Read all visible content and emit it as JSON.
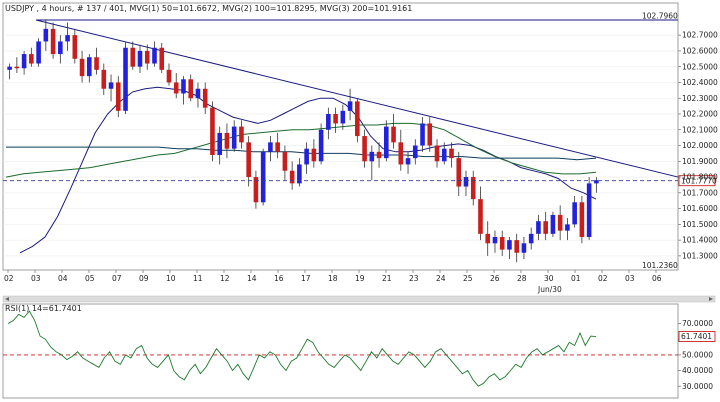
{
  "window": {
    "background": "#ffffff"
  },
  "main_chart": {
    "title": "USDJPY , 4 hours, # 137 / 401, MVG(1) 50=101.6672, MVG(2) 100=101.8295, MVG(3) 200=101.9161",
    "y_labels": [
      "102.7000",
      "102.6000",
      "102.5000",
      "102.4000",
      "102.3000",
      "102.2000",
      "102.1000",
      "102.0000",
      "101.9000",
      "101.8000",
      "101.7000",
      "101.6000",
      "101.5000",
      "101.4000",
      "101.3000"
    ],
    "high_label": "102.7960",
    "low_label": "101.2360",
    "price_label": "101.7770",
    "x_labels": [
      "02",
      "03",
      "04",
      "05",
      "07",
      "09",
      "10",
      "11",
      "12",
      "14",
      "16",
      "17",
      "18",
      "19",
      "21",
      "23",
      "24",
      "25",
      "26",
      "28",
      "30",
      "01",
      "02",
      "03",
      "06"
    ],
    "x_sublabel": "Jun/30"
  },
  "rsi_panel": {
    "title": "RSI(1) 14=61.7401",
    "y_labels": [
      "70.0000",
      "60.0000",
      "50.0000",
      "40.0000",
      "30.0000"
    ],
    "value_label": "61.7401"
  },
  "chart_data": [
    {
      "type": "candlestick",
      "title": "USDJPY , 4 hours, # 137 / 401, MVG(1) 50=101.6672, MVG(2) 100=101.8295, MVG(3) 200=101.9161",
      "ylim": [
        101.236,
        102.796
      ],
      "ticks": [
        102.7,
        102.6,
        102.5,
        102.4,
        102.3,
        102.2,
        102.1,
        102.0,
        101.9,
        101.8,
        101.7,
        101.6,
        101.5,
        101.4,
        101.3
      ],
      "markers": {
        "high": 102.796,
        "low": 101.236,
        "last": 101.777
      },
      "series": [
        {
          "name": "MVG(1) 50",
          "color": "#1a1a80"
        },
        {
          "name": "MVG(2) 100",
          "color": "#1c6b2c"
        },
        {
          "name": "MVG(3) 200",
          "color": "#0c3c5c"
        }
      ],
      "ma50": [
        101.32,
        101.36,
        101.42,
        101.55,
        101.72,
        101.9,
        102.08,
        102.2,
        102.28,
        102.34,
        102.36,
        102.37,
        102.36,
        102.35,
        102.32,
        102.26,
        102.22,
        102.18,
        102.16,
        102.14,
        102.16,
        102.2,
        102.24,
        102.28,
        102.3,
        102.3,
        102.26,
        102.18,
        102.06,
        101.98,
        101.96,
        101.96,
        101.97,
        101.99,
        102.0,
        102.01,
        102.0,
        101.97,
        101.93,
        101.9,
        101.86,
        101.84,
        101.82,
        101.79,
        101.73,
        101.7,
        101.66
      ],
      "ma100": [
        101.8,
        101.82,
        101.83,
        101.84,
        101.85,
        101.86,
        101.88,
        101.9,
        101.92,
        101.94,
        101.95,
        101.98,
        102.01,
        102.04,
        102.07,
        102.08,
        102.09,
        102.1,
        102.1,
        102.11,
        102.12,
        102.13,
        102.13,
        102.14,
        102.14,
        102.13,
        102.1,
        102.04,
        101.98,
        101.93,
        101.89,
        101.86,
        101.83,
        101.82,
        101.82,
        101.83
      ],
      "ma200": [
        101.99,
        101.99,
        101.99,
        101.99,
        101.99,
        101.99,
        101.99,
        101.99,
        101.99,
        101.98,
        101.98,
        101.97,
        101.97,
        101.96,
        101.96,
        101.96,
        101.95,
        101.95,
        101.95,
        101.94,
        101.94,
        101.94,
        101.93,
        101.93,
        101.93,
        101.92,
        101.92,
        101.92,
        101.92,
        101.92,
        101.91,
        101.92
      ],
      "trendline": [
        [
          102.796,
          0
        ],
        [
          101.8,
          1
        ]
      ],
      "candles": [
        [
          102.48,
          102.52,
          102.42,
          102.5
        ],
        [
          102.5,
          102.56,
          102.46,
          102.49
        ],
        [
          102.49,
          102.6,
          102.45,
          102.58
        ],
        [
          102.58,
          102.62,
          102.5,
          102.52
        ],
        [
          102.52,
          102.68,
          102.5,
          102.66
        ],
        [
          102.66,
          102.8,
          102.6,
          102.74
        ],
        [
          102.74,
          102.78,
          102.55,
          102.58
        ],
        [
          102.58,
          102.7,
          102.52,
          102.66
        ],
        [
          102.66,
          102.78,
          102.6,
          102.7
        ],
        [
          102.7,
          102.74,
          102.52,
          102.55
        ],
        [
          102.55,
          102.6,
          102.4,
          102.44
        ],
        [
          102.44,
          102.58,
          102.4,
          102.56
        ],
        [
          102.56,
          102.62,
          102.45,
          102.48
        ],
        [
          102.48,
          102.52,
          102.32,
          102.36
        ],
        [
          102.36,
          102.45,
          102.28,
          102.4
        ],
        [
          102.4,
          102.44,
          102.18,
          102.22
        ],
        [
          102.22,
          102.66,
          102.2,
          102.62
        ],
        [
          102.62,
          102.66,
          102.48,
          102.5
        ],
        [
          102.5,
          102.64,
          102.46,
          102.6
        ],
        [
          102.6,
          102.64,
          102.48,
          102.52
        ],
        [
          102.52,
          102.66,
          102.5,
          102.62
        ],
        [
          102.62,
          102.65,
          102.46,
          102.48
        ],
        [
          102.48,
          102.52,
          102.38,
          102.4
        ],
        [
          102.4,
          102.46,
          102.3,
          102.33
        ],
        [
          102.33,
          102.44,
          102.26,
          102.42
        ],
        [
          102.42,
          102.45,
          102.28,
          102.3
        ],
        [
          102.3,
          102.4,
          102.24,
          102.36
        ],
        [
          102.36,
          102.4,
          102.2,
          102.24
        ],
        [
          102.24,
          102.28,
          101.9,
          101.94
        ],
        [
          101.94,
          102.12,
          101.88,
          102.08
        ],
        [
          102.08,
          102.14,
          101.92,
          101.98
        ],
        [
          101.98,
          102.16,
          101.96,
          102.12
        ],
        [
          102.12,
          102.16,
          101.98,
          102.02
        ],
        [
          102.02,
          102.06,
          101.74,
          101.8
        ],
        [
          101.8,
          101.84,
          101.6,
          101.64
        ],
        [
          101.64,
          101.98,
          101.62,
          101.96
        ],
        [
          101.96,
          102.06,
          101.9,
          102.02
        ],
        [
          102.02,
          102.08,
          101.92,
          101.96
        ],
        [
          101.96,
          102.0,
          101.78,
          101.84
        ],
        [
          101.84,
          101.9,
          101.72,
          101.76
        ],
        [
          101.76,
          101.92,
          101.74,
          101.88
        ],
        [
          101.88,
          102.02,
          101.82,
          101.98
        ],
        [
          101.98,
          102.04,
          101.86,
          101.9
        ],
        [
          101.9,
          102.14,
          101.88,
          102.1
        ],
        [
          102.1,
          102.24,
          102.04,
          102.2
        ],
        [
          102.2,
          102.24,
          102.08,
          102.14
        ],
        [
          102.14,
          102.26,
          102.1,
          102.22
        ],
        [
          102.22,
          102.36,
          102.16,
          102.28
        ],
        [
          102.28,
          102.3,
          102.02,
          102.06
        ],
        [
          102.06,
          102.1,
          101.86,
          101.9
        ],
        [
          101.9,
          102.0,
          101.78,
          101.96
        ],
        [
          101.96,
          102.02,
          101.86,
          101.92
        ],
        [
          101.92,
          102.16,
          101.9,
          102.12
        ],
        [
          102.12,
          102.2,
          101.98,
          102.02
        ],
        [
          102.02,
          102.1,
          101.84,
          101.88
        ],
        [
          101.88,
          101.96,
          101.82,
          101.92
        ],
        [
          101.92,
          102.04,
          101.88,
          102.0
        ],
        [
          102.0,
          102.18,
          101.96,
          102.14
        ],
        [
          102.14,
          102.18,
          101.96,
          102.0
        ],
        [
          102.0,
          102.04,
          101.86,
          101.9
        ],
        [
          101.9,
          102.02,
          101.88,
          101.98
        ],
        [
          101.98,
          102.02,
          101.86,
          101.92
        ],
        [
          101.92,
          101.96,
          101.68,
          101.74
        ],
        [
          101.74,
          101.84,
          101.68,
          101.8
        ],
        [
          101.8,
          101.84,
          101.62,
          101.66
        ],
        [
          101.66,
          101.74,
          101.4,
          101.44
        ],
        [
          101.44,
          101.52,
          101.3,
          101.38
        ],
        [
          101.38,
          101.46,
          101.32,
          101.42
        ],
        [
          101.42,
          101.46,
          101.3,
          101.34
        ],
        [
          101.34,
          101.42,
          101.28,
          101.4
        ],
        [
          101.4,
          101.44,
          101.26,
          101.32
        ],
        [
          101.32,
          101.42,
          101.28,
          101.38
        ],
        [
          101.38,
          101.48,
          101.34,
          101.44
        ],
        [
          101.44,
          101.56,
          101.4,
          101.52
        ],
        [
          101.52,
          101.58,
          101.4,
          101.44
        ],
        [
          101.44,
          101.58,
          101.42,
          101.56
        ],
        [
          101.56,
          101.62,
          101.4,
          101.46
        ],
        [
          101.46,
          101.54,
          101.4,
          101.5
        ],
        [
          101.5,
          101.68,
          101.48,
          101.64
        ],
        [
          101.64,
          101.68,
          101.38,
          101.42
        ],
        [
          101.42,
          101.8,
          101.4,
          101.76
        ],
        [
          101.76,
          101.8,
          101.7,
          101.78
        ]
      ]
    },
    {
      "type": "line",
      "title": "RSI(1) 14=61.7401",
      "ylim": [
        25,
        80
      ],
      "ticks": [
        70,
        60,
        50,
        40,
        30
      ],
      "reference": 50,
      "last": 61.7401,
      "values": [
        70,
        72,
        76,
        74,
        78,
        72,
        62,
        60,
        55,
        52,
        50,
        47,
        49,
        52,
        48,
        46,
        44,
        42,
        48,
        52,
        46,
        44,
        50,
        48,
        54,
        56,
        48,
        44,
        42,
        46,
        50,
        40,
        36,
        34,
        40,
        44,
        38,
        42,
        48,
        54,
        50,
        46,
        40,
        44,
        38,
        34,
        42,
        50,
        48,
        52,
        50,
        44,
        40,
        46,
        48,
        54,
        60,
        58,
        52,
        48,
        44,
        42,
        46,
        50,
        48,
        44,
        40,
        46,
        52,
        48,
        54,
        50,
        46,
        44,
        48,
        52,
        50,
        46,
        42,
        46,
        52,
        54,
        50,
        46,
        42,
        38,
        40,
        34,
        30,
        32,
        36,
        38,
        34,
        36,
        40,
        44,
        42,
        48,
        52,
        54,
        50,
        52,
        54,
        56,
        52,
        58,
        56,
        64,
        56,
        62,
        61.74
      ]
    }
  ]
}
